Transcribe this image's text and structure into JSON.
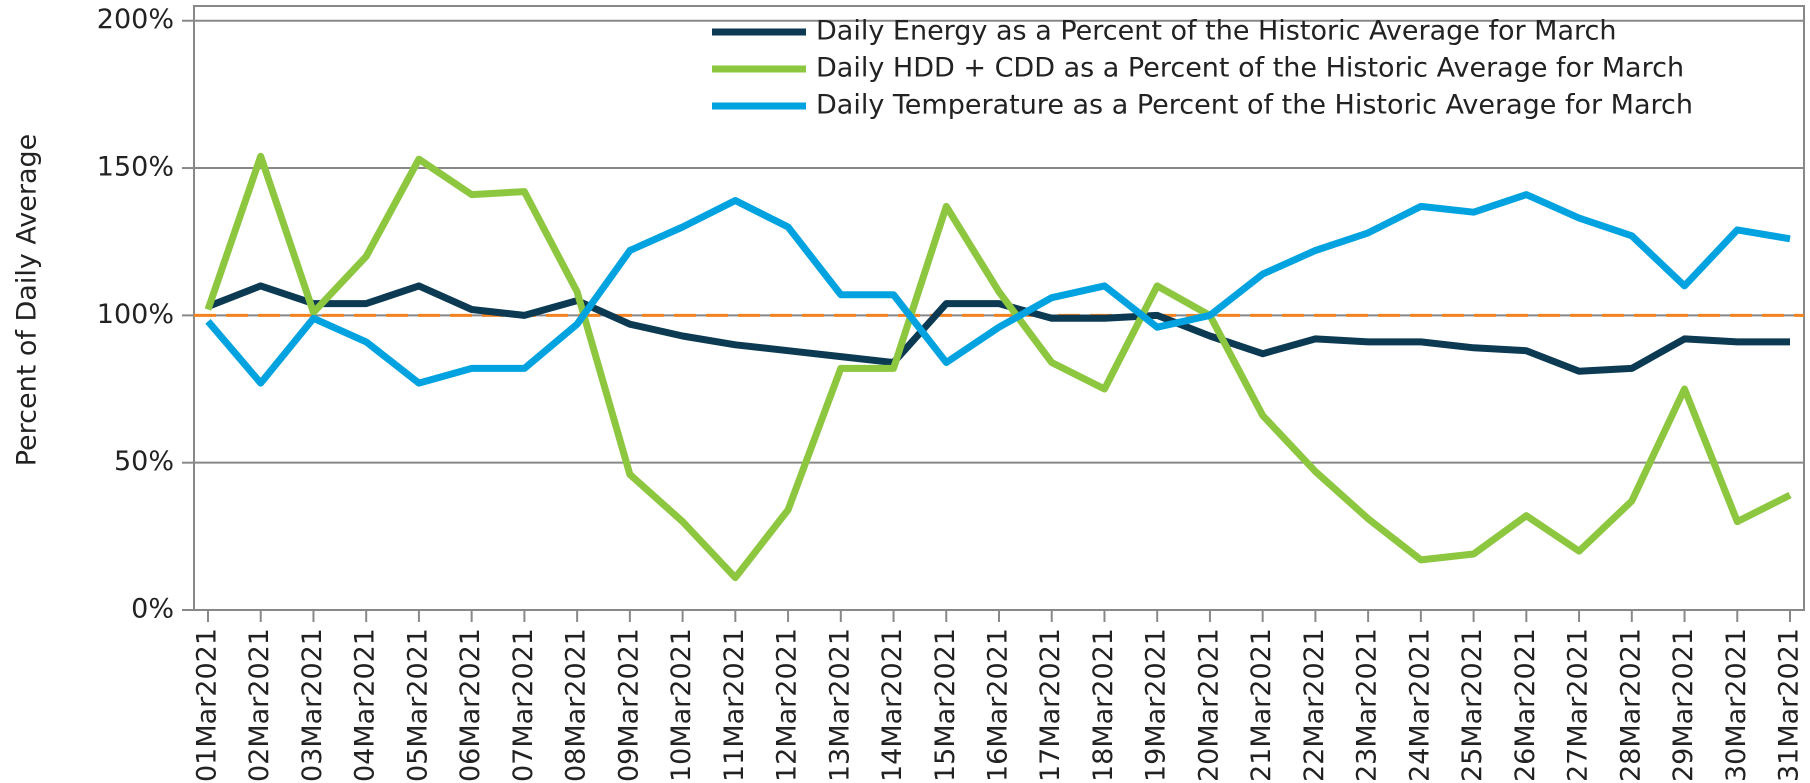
{
  "chart_data": {
    "type": "line",
    "y_label": "Percent of Daily Average",
    "categories": [
      "01Mar2021",
      "02Mar2021",
      "03Mar2021",
      "04Mar2021",
      "05Mar2021",
      "06Mar2021",
      "07Mar2021",
      "08Mar2021",
      "09Mar2021",
      "10Mar2021",
      "11Mar2021",
      "12Mar2021",
      "13Mar2021",
      "14Mar2021",
      "15Mar2021",
      "16Mar2021",
      "17Mar2021",
      "18Mar2021",
      "19Mar2021",
      "20Mar2021",
      "21Mar2021",
      "22Mar2021",
      "23Mar2021",
      "24Mar2021",
      "25Mar2021",
      "26Mar2021",
      "27Mar2021",
      "28Mar2021",
      "29Mar2021",
      "30Mar2021",
      "31Mar2021"
    ],
    "series": [
      {
        "name": "Daily Energy as a Percent of the Historic Average for March",
        "color": "#0b3a52",
        "values": [
          103,
          110,
          104,
          104,
          110,
          102,
          100,
          105,
          97,
          93,
          90,
          88,
          86,
          84,
          104,
          104,
          99,
          99,
          100,
          93,
          87,
          92,
          91,
          91,
          89,
          88,
          81,
          82,
          92,
          91,
          91
        ]
      },
      {
        "name": "Daily HDD + CDD as a Percent of the Historic Average for March",
        "color": "#8dc63f",
        "values": [
          102,
          154,
          101,
          120,
          153,
          141,
          142,
          108,
          46,
          30,
          11,
          34,
          82,
          82,
          137,
          108,
          84,
          75,
          110,
          100,
          66,
          47,
          31,
          17,
          19,
          32,
          20,
          37,
          75,
          30,
          39
        ]
      },
      {
        "name": "Daily Temperature as a Percent of the Historic Average for March",
        "color": "#00a3e0",
        "values": [
          98,
          77,
          99,
          91,
          77,
          82,
          82,
          97,
          122,
          130,
          139,
          130,
          107,
          107,
          84,
          96,
          106,
          110,
          96,
          100,
          114,
          122,
          128,
          137,
          135,
          141,
          133,
          127,
          110,
          129,
          126
        ]
      }
    ],
    "reference_line": {
      "value": 100,
      "color": "#f58220"
    },
    "ylim": [
      0,
      205
    ],
    "yticks": [
      {
        "value": 0,
        "label": "0%"
      },
      {
        "value": 50,
        "label": "50%"
      },
      {
        "value": 100,
        "label": "100%"
      },
      {
        "value": 150,
        "label": "150%"
      },
      {
        "value": 200,
        "label": "200%"
      }
    ],
    "grid": true,
    "legend": "top-right"
  }
}
